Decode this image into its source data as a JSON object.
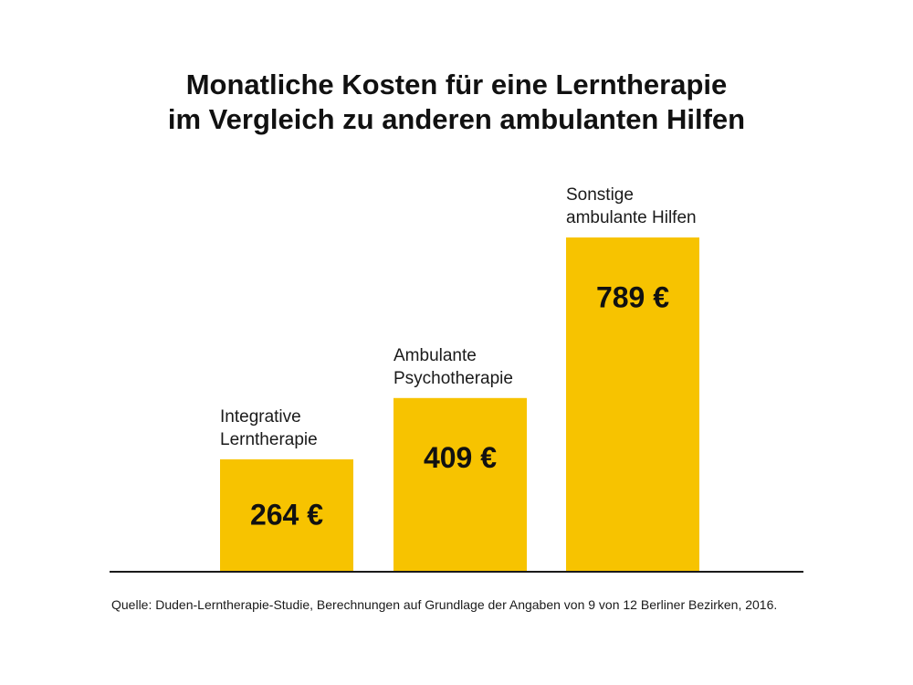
{
  "chart_data": {
    "type": "bar",
    "title": [
      "Monatliche Kosten für eine Lerntherapie",
      "im Vergleich zu anderen ambulanten Hilfen"
    ],
    "categories": [
      [
        "Integrative",
        "Lerntherapie"
      ],
      [
        "Ambulante",
        "Psychotherapie"
      ],
      [
        "Sonstige",
        "ambulante Hilfen"
      ]
    ],
    "values": [
      264,
      409,
      789
    ],
    "value_labels": [
      "264 €",
      "409 €",
      "789 €"
    ],
    "unit": "€",
    "ylim": [
      0,
      789
    ],
    "grid": false,
    "bar_color": "#F7C300",
    "axis_color": "#1a1a1a"
  },
  "source": "Quelle: Duden-Lerntherapie-Studie, Berechnungen auf Grundlage der Angaben von 9 von 12 Berliner Bezirken, 2016."
}
